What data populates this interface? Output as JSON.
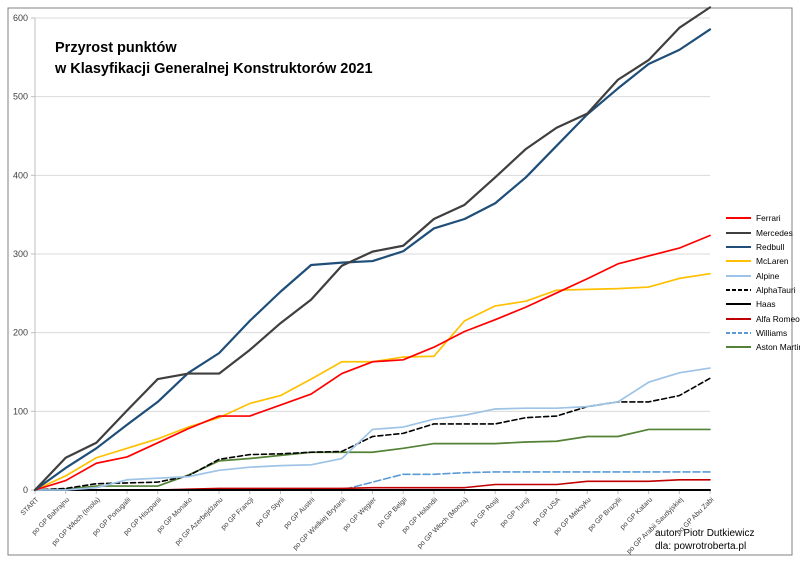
{
  "title": {
    "line1": "Przyrost punktów",
    "line2": "w Klasyfikacji Generalnej Konstruktorów 2021"
  },
  "footer": {
    "author": "autor: Piotr Dutkiewicz",
    "site": "dla: powrotroberta.pl"
  },
  "chart_data": {
    "type": "line",
    "title": "Przyrost punktów w Klasyfikacji Generalnej Konstruktorów 2021",
    "xlabel": "",
    "ylabel": "",
    "ylim": [
      0,
      600
    ],
    "yticks": [
      0,
      100,
      200,
      300,
      400,
      500,
      600
    ],
    "grid": true,
    "legend_position": "right",
    "x_label_rotation_deg": 45,
    "categories": [
      "START",
      "po GP Bahrajnu",
      "po GP Włoch (Imola)",
      "po GP Portugalii",
      "po GP Hiszpanii",
      "po GP Monako",
      "po GP Azerbejdżanu",
      "po GP Francji",
      "po GP Styrii",
      "po GP Austrii",
      "po GP Wielkiej Brytanii",
      "po GP Węgier",
      "po GP Belgii",
      "po GP Holandii",
      "po GP Włoch (Monza)",
      "po GP Rosji",
      "po GP Turcji",
      "po GP USA",
      "po GP Meksyku",
      "po GP Brazylii",
      "po GP Kataru",
      "po GP Arabii Saudyjskiej",
      "po GP Abu Zabi"
    ],
    "series": [
      {
        "name": "Ferrari",
        "color": "#FF0000",
        "dash": "none",
        "width": 1.7,
        "z": 8,
        "values": [
          0,
          12,
          34,
          42,
          60,
          78,
          94,
          94,
          108,
          122,
          148,
          163,
          165.5,
          181.5,
          201.5,
          216.5,
          232.5,
          250.5,
          268.5,
          287.5,
          297.5,
          307.5,
          323.5
        ]
      },
      {
        "name": "Mercedes",
        "color": "#3F3F3F",
        "dash": "none",
        "width": 2.2,
        "z": 10,
        "values": [
          0,
          41,
          60,
          101,
          141,
          148,
          148,
          178,
          212,
          242,
          285,
          303,
          310.5,
          344.5,
          362.5,
          397.5,
          433.5,
          460.5,
          478.5,
          521.5,
          546.5,
          587.5,
          613.5
        ]
      },
      {
        "name": "Redbull",
        "color": "#1F4E79",
        "dash": "none",
        "width": 2.2,
        "z": 9,
        "values": [
          0,
          28,
          53,
          83,
          112,
          149,
          174,
          215,
          252,
          286,
          289,
          291,
          303.5,
          332.5,
          344.5,
          364.5,
          397.5,
          437.5,
          477.5,
          510.5,
          541.5,
          559.5,
          585.5
        ]
      },
      {
        "name": "McLaren",
        "color": "#FFC000",
        "dash": "none",
        "width": 1.7,
        "z": 7,
        "values": [
          0,
          18,
          41,
          53,
          65,
          80,
          92,
          110,
          120,
          141,
          163,
          163,
          169,
          170,
          215,
          234,
          240,
          254,
          255,
          256,
          258,
          269,
          275
        ]
      },
      {
        "name": "Alpine",
        "color": "#9DC3E6",
        "dash": "none",
        "width": 1.7,
        "z": 6,
        "values": [
          0,
          0,
          3,
          13,
          15,
          17,
          25,
          29,
          31,
          32,
          40,
          77,
          80,
          90,
          95,
          103,
          104,
          104,
          106,
          112,
          137,
          149,
          155
        ]
      },
      {
        "name": "AlphaTauri",
        "color": "#000000",
        "dash": "dashed",
        "width": 1.6,
        "z": 5,
        "values": [
          0,
          2,
          8,
          9,
          10,
          18,
          39,
          45,
          46,
          48,
          49,
          68,
          72,
          84,
          84,
          84,
          92,
          94,
          106,
          112,
          112,
          120,
          142
        ]
      },
      {
        "name": "Haas",
        "color": "#000000",
        "dash": "none",
        "width": 2.0,
        "z": 3,
        "values": [
          0,
          0,
          0,
          0,
          0,
          0,
          0,
          0,
          0,
          0,
          0,
          0,
          0,
          0,
          0,
          0,
          0,
          0,
          0,
          0,
          0,
          0,
          0
        ]
      },
      {
        "name": "Alfa Romeo",
        "color": "#C00000",
        "dash": "none",
        "width": 1.6,
        "z": 2,
        "values": [
          0,
          0,
          0,
          0,
          0,
          1,
          2,
          2,
          2,
          2,
          2,
          3,
          3,
          3,
          3,
          7,
          7,
          7,
          11,
          11,
          11,
          13,
          13
        ]
      },
      {
        "name": "Williams",
        "color": "#5B9BD5",
        "dash": "dashed",
        "width": 1.6,
        "z": 1,
        "values": [
          0,
          0,
          0,
          0,
          0,
          0,
          0,
          0,
          0,
          0,
          0,
          10,
          20,
          20,
          22,
          23,
          23,
          23,
          23,
          23,
          23,
          23,
          23
        ]
      },
      {
        "name": "Aston Martin",
        "color": "#538135",
        "dash": "none",
        "width": 1.7,
        "z": 4,
        "values": [
          0,
          1,
          5,
          5,
          5,
          19,
          37,
          40,
          44,
          48,
          48,
          48,
          53,
          59,
          59,
          59,
          61,
          62,
          68,
          68,
          77,
          77,
          77
        ]
      }
    ],
    "colors": {
      "gridline": "#D9D9D9",
      "axis": "#BFBFBF",
      "axis_label": "#404040",
      "frame": "#808080"
    }
  }
}
